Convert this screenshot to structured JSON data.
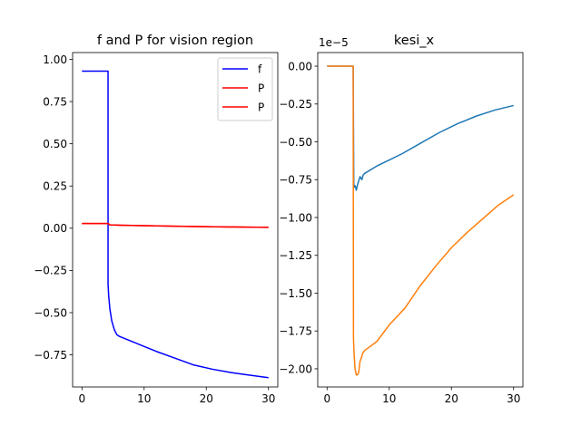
{
  "chart_data": [
    {
      "type": "line",
      "title": "f and P for vision region",
      "xlim": [
        -1.5,
        31.5
      ],
      "ylim": [
        -0.94,
        1.04
      ],
      "xticks": [
        0,
        10,
        20,
        30
      ],
      "xtick_labels": [
        "0",
        "10",
        "20",
        "30"
      ],
      "yticks": [
        1.0,
        0.75,
        0.5,
        0.25,
        0.0,
        -0.25,
        -0.5,
        -0.75
      ],
      "ytick_labels": [
        "1.00",
        "0.75",
        "0.50",
        "0.25",
        "0.00",
        "−0.25",
        "−0.50",
        "−0.75"
      ],
      "legend_position": "upper-right",
      "grid": false,
      "series": [
        {
          "name": "f",
          "color": "#0000ff",
          "x": [
            0,
            4.2,
            4.2,
            4.3,
            4.5,
            4.8,
            5.2,
            5.6,
            6,
            8,
            10,
            12,
            15,
            18,
            21,
            24,
            27,
            30
          ],
          "y": [
            0.93,
            0.93,
            -0.33,
            -0.4,
            -0.48,
            -0.55,
            -0.6,
            -0.63,
            -0.64,
            -0.67,
            -0.7,
            -0.73,
            -0.77,
            -0.81,
            -0.835,
            -0.855,
            -0.87,
            -0.885
          ]
        },
        {
          "name": "P",
          "color": "#ff0000",
          "x": [
            0,
            4.2,
            4.5,
            6,
            10,
            15,
            20,
            25,
            30
          ],
          "y": [
            0.028,
            0.028,
            0.02,
            0.018,
            0.015,
            0.012,
            0.009,
            0.007,
            0.005
          ]
        },
        {
          "name": "P",
          "color": "#ff0000",
          "x": [
            0,
            4.2,
            4.5,
            6,
            10,
            15,
            20,
            25,
            30
          ],
          "y": [
            0.028,
            0.028,
            0.02,
            0.018,
            0.015,
            0.012,
            0.009,
            0.007,
            0.005
          ]
        }
      ]
    },
    {
      "type": "line",
      "title": "kesi_x",
      "offset_label": "1e−5",
      "xlim": [
        -1.5,
        31.5
      ],
      "ylim": [
        -2.12,
        0.09
      ],
      "xticks": [
        0,
        10,
        20,
        30
      ],
      "xtick_labels": [
        "0",
        "10",
        "20",
        "30"
      ],
      "yticks": [
        0.0,
        -0.25,
        -0.5,
        -0.75,
        -1.0,
        -1.25,
        -1.5,
        -1.75,
        -2.0
      ],
      "ytick_labels": [
        "0.00",
        "−0.25",
        "−0.50",
        "−0.75",
        "−1.00",
        "−1.25",
        "−1.50",
        "−1.75",
        "−2.00"
      ],
      "grid": false,
      "series": [
        {
          "color": "#1f77b4",
          "x": [
            0,
            4.2,
            4.3,
            4.4,
            4.5,
            4.6,
            4.7,
            4.8,
            5.0,
            5.3,
            5.6,
            5.8,
            6.0,
            8,
            10,
            12,
            15,
            18,
            21,
            24,
            27,
            30
          ],
          "y": [
            0.0,
            0.0,
            -0.78,
            -0.8,
            -0.79,
            -0.8,
            -0.82,
            -0.8,
            -0.77,
            -0.73,
            -0.75,
            -0.72,
            -0.71,
            -0.66,
            -0.62,
            -0.58,
            -0.51,
            -0.44,
            -0.38,
            -0.33,
            -0.29,
            -0.26
          ]
        },
        {
          "color": "#ff7f0e",
          "x": [
            0,
            4.2,
            4.25,
            4.35,
            4.5,
            4.7,
            4.9,
            5.1,
            5.3,
            5.5,
            5.7,
            6.0,
            7,
            8,
            10,
            12.5,
            15,
            17.5,
            20,
            22.5,
            25,
            27.5,
            30
          ],
          "y": [
            0.0,
            0.0,
            -1.8,
            -1.9,
            -2.0,
            -2.04,
            -2.04,
            -2.02,
            -1.95,
            -1.93,
            -1.9,
            -1.88,
            -1.85,
            -1.82,
            -1.71,
            -1.6,
            -1.45,
            -1.32,
            -1.2,
            -1.1,
            -1.01,
            -0.92,
            -0.85
          ]
        }
      ]
    }
  ]
}
